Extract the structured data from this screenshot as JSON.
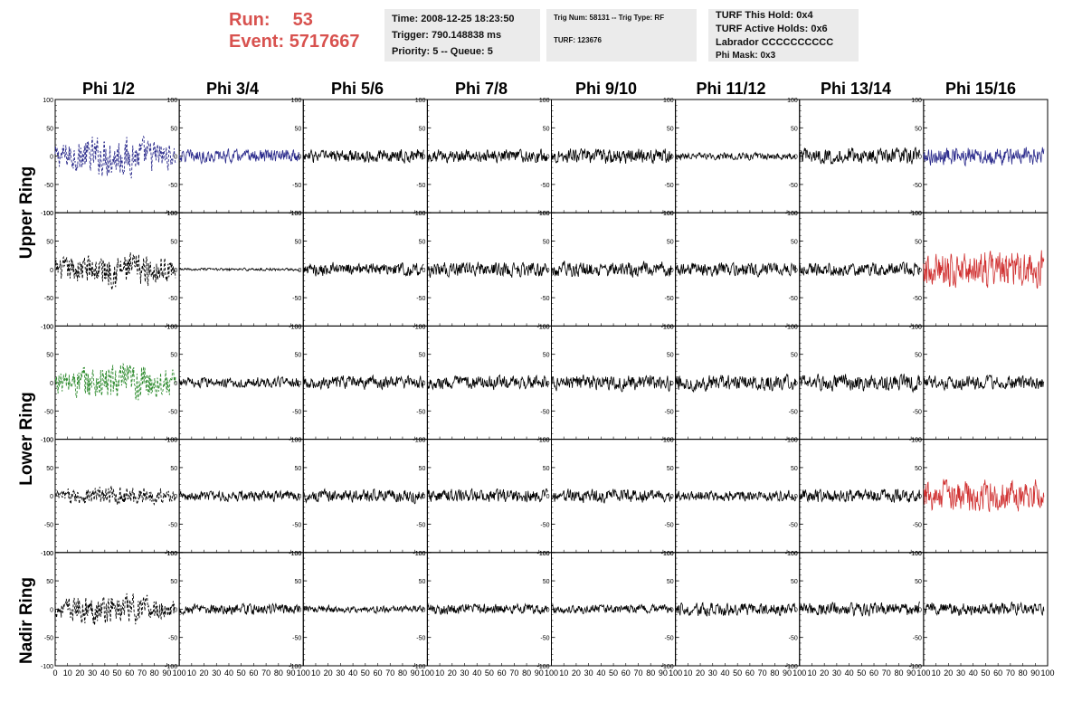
{
  "run_info": {
    "run_label": "Run:",
    "run_value": "53",
    "event_label": "Event:",
    "event_value": "5717667"
  },
  "info_box_1": {
    "time": "Time: 2008-12-25 18:23:50",
    "trigger": "Trigger: 790.148838 ms",
    "priority": "Priority: 5 -- Queue: 5"
  },
  "info_box_2": {
    "trig": "Trig Num: 58131 -- Trig Type: RF",
    "turf": "TURF: 123676"
  },
  "info_box_3": {
    "hold": "TURF This Hold: 0x4",
    "active": "TURF Active Holds: 0x6",
    "labrador": "Labrador CCCCCCCCCC",
    "phimask": "Phi Mask: 0x3"
  },
  "columns": [
    "Phi 1/2",
    "Phi 3/4",
    "Phi 5/6",
    "Phi 7/8",
    "Phi 9/10",
    "Phi 11/12",
    "Phi 13/14",
    "Phi 15/16"
  ],
  "row_groups": [
    "Upper Ring",
    "Lower Ring",
    "Nadir Ring"
  ],
  "colors": {
    "black": "#000000",
    "blue": "#2b2b8c",
    "green": "#2e8b2e",
    "red": "#d03030",
    "run_text": "#d8524f",
    "info_bg": "#ebebeb"
  },
  "chart_data": {
    "type": "line",
    "grid_rows": 5,
    "grid_cols": 8,
    "xlim": [
      0,
      100
    ],
    "ylim": [
      -100,
      100
    ],
    "x_ticks": [
      "0",
      "10",
      "20",
      "30",
      "40",
      "50",
      "60",
      "70",
      "80",
      "90",
      "100"
    ],
    "y_ticks": [
      "100",
      "50",
      "0",
      "-50",
      "-100"
    ],
    "panels": [
      [
        {
          "amp": 45,
          "color": "blue",
          "dashed": true
        },
        {
          "amp": 15,
          "color": "blue",
          "dashed": false
        },
        {
          "amp": 15,
          "color": "black",
          "dashed": false
        },
        {
          "amp": 15,
          "color": "black",
          "dashed": false
        },
        {
          "amp": 17,
          "color": "black",
          "dashed": false
        },
        {
          "amp": 8,
          "color": "black",
          "dashed": false
        },
        {
          "amp": 18,
          "color": "black",
          "dashed": false
        },
        {
          "amp": 20,
          "color": "blue",
          "dashed": false
        }
      ],
      [
        {
          "amp": 40,
          "color": "black",
          "dashed": true
        },
        {
          "amp": 3,
          "color": "black",
          "dashed": false
        },
        {
          "amp": 15,
          "color": "black",
          "dashed": false
        },
        {
          "amp": 17,
          "color": "black",
          "dashed": false
        },
        {
          "amp": 17,
          "color": "black",
          "dashed": false
        },
        {
          "amp": 15,
          "color": "black",
          "dashed": false
        },
        {
          "amp": 15,
          "color": "black",
          "dashed": false
        },
        {
          "amp": 40,
          "color": "red",
          "dashed": false
        }
      ],
      [
        {
          "amp": 45,
          "color": "green",
          "dashed": true
        },
        {
          "amp": 12,
          "color": "black",
          "dashed": false
        },
        {
          "amp": 15,
          "color": "black",
          "dashed": false
        },
        {
          "amp": 15,
          "color": "black",
          "dashed": false
        },
        {
          "amp": 17,
          "color": "black",
          "dashed": false
        },
        {
          "amp": 18,
          "color": "black",
          "dashed": false
        },
        {
          "amp": 18,
          "color": "black",
          "dashed": false
        },
        {
          "amp": 15,
          "color": "black",
          "dashed": false
        }
      ],
      [
        {
          "amp": 22,
          "color": "black",
          "dashed": true
        },
        {
          "amp": 12,
          "color": "black",
          "dashed": false
        },
        {
          "amp": 15,
          "color": "black",
          "dashed": false
        },
        {
          "amp": 15,
          "color": "black",
          "dashed": false
        },
        {
          "amp": 15,
          "color": "black",
          "dashed": false
        },
        {
          "amp": 12,
          "color": "black",
          "dashed": false
        },
        {
          "amp": 15,
          "color": "black",
          "dashed": false
        },
        {
          "amp": 35,
          "color": "red",
          "dashed": false
        }
      ],
      [
        {
          "amp": 35,
          "color": "black",
          "dashed": true
        },
        {
          "amp": 12,
          "color": "black",
          "dashed": false
        },
        {
          "amp": 8,
          "color": "black",
          "dashed": false
        },
        {
          "amp": 12,
          "color": "black",
          "dashed": false
        },
        {
          "amp": 10,
          "color": "black",
          "dashed": false
        },
        {
          "amp": 15,
          "color": "black",
          "dashed": false
        },
        {
          "amp": 15,
          "color": "black",
          "dashed": false
        },
        {
          "amp": 15,
          "color": "black",
          "dashed": false
        }
      ]
    ]
  }
}
